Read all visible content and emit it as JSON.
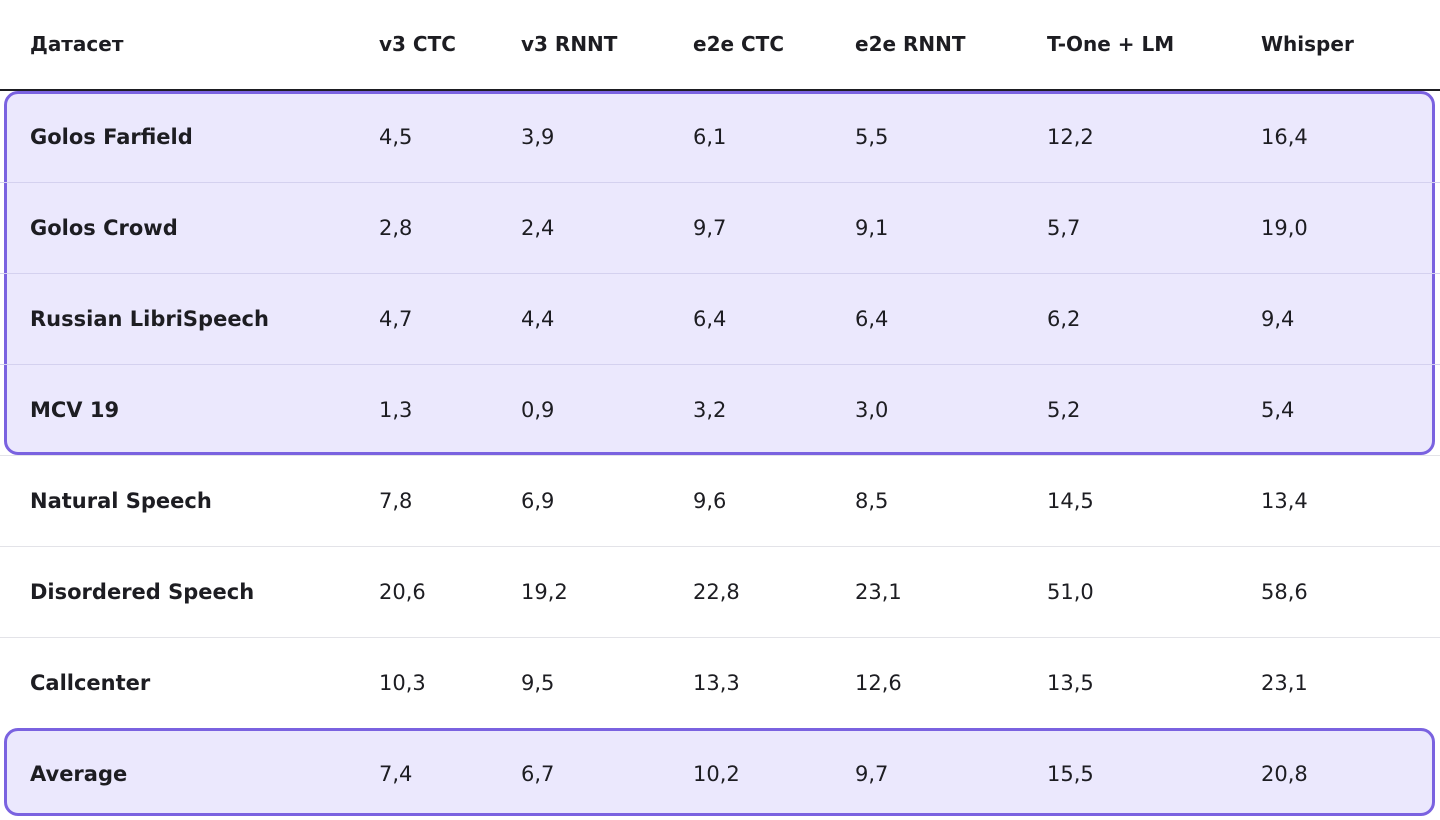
{
  "table": {
    "columns": [
      "Датасет",
      "v3 CTC",
      "v3 RNNT",
      "e2e CTC",
      "e2e RNNT",
      "T-One + LM",
      "Whisper"
    ],
    "rows": [
      {
        "name": "Golos Farfield",
        "values": [
          "4,5",
          "3,9",
          "6,1",
          "5,5",
          "12,2",
          "16,4"
        ],
        "highlighted": true
      },
      {
        "name": "Golos Crowd",
        "values": [
          "2,8",
          "2,4",
          "9,7",
          "9,1",
          "5,7",
          "19,0"
        ],
        "highlighted": true
      },
      {
        "name": "Russian LibriSpeech",
        "values": [
          "4,7",
          "4,4",
          "6,4",
          "6,4",
          "6,2",
          "9,4"
        ],
        "highlighted": true
      },
      {
        "name": "MCV 19",
        "values": [
          "1,3",
          "0,9",
          "3,2",
          "3,0",
          "5,2",
          "5,4"
        ],
        "highlighted": true
      },
      {
        "name": "Natural Speech",
        "values": [
          "7,8",
          "6,9",
          "9,6",
          "8,5",
          "14,5",
          "13,4"
        ],
        "highlighted": false
      },
      {
        "name": "Disordered Speech",
        "values": [
          "20,6",
          "19,2",
          "22,8",
          "23,1",
          "51,0",
          "58,6"
        ],
        "highlighted": false
      },
      {
        "name": "Callcenter",
        "values": [
          "10,3",
          "9,5",
          "13,3",
          "12,6",
          "13,5",
          "23,1"
        ],
        "highlighted": false
      },
      {
        "name": "Average",
        "values": [
          "7,4",
          "6,7",
          "10,2",
          "9,7",
          "15,5",
          "20,8"
        ],
        "highlighted": true
      }
    ]
  },
  "colors": {
    "highlight_fill": "#ebe8fd",
    "highlight_border": "#7a62e0",
    "text": "#1d1d22",
    "divider": "#e3e3e8"
  }
}
